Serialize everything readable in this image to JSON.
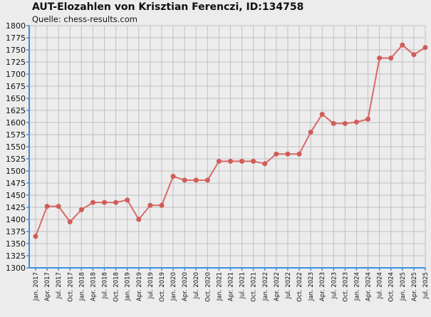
{
  "chart_data": {
    "type": "line",
    "title": "AUT-Elozahlen von Krisztian Ferenczi, ID:134758",
    "subtitle": "Quelle: chess-results.com",
    "xlabel": "",
    "ylabel": "",
    "ylim": [
      1300,
      1800
    ],
    "yticks": [
      1300,
      1325,
      1350,
      1375,
      1400,
      1425,
      1450,
      1475,
      1500,
      1525,
      1550,
      1575,
      1600,
      1625,
      1650,
      1675,
      1700,
      1725,
      1750,
      1775,
      1800
    ],
    "categories": [
      "Jan. 2017",
      "Apr. 2017",
      "Jul. 2017",
      "Oct. 2017",
      "Jan. 2018",
      "Apr. 2018",
      "Jul. 2018",
      "Oct. 2018",
      "Jan. 2019",
      "Apr. 2019",
      "Jul. 2019",
      "Oct. 2019",
      "Jan. 2020",
      "Apr. 2020",
      "Jul. 2020",
      "Oct. 2020",
      "Jan. 2021",
      "Apr. 2021",
      "Jul. 2021",
      "Oct. 2021",
      "Jan. 2022",
      "Apr. 2022",
      "Jul. 2022",
      "Oct. 2022",
      "Jan. 2023",
      "Apr. 2023",
      "Jul. 2023",
      "Oct. 2023",
      "Jan. 2024",
      "Apr. 2024",
      "Jul. 2024",
      "Oct. 2024",
      "Jan. 2025",
      "Apr. 2025",
      "Jul. 2025"
    ],
    "series": [
      {
        "values": [
          1365,
          1427,
          1427,
          1395,
          1420,
          1435,
          1435,
          1435,
          1440,
          1400,
          1429,
          1429,
          1489,
          1481,
          1481,
          1481,
          1520,
          1520,
          1520,
          1520,
          1515,
          1535,
          1535,
          1535,
          1580,
          1617,
          1598,
          1598,
          1601,
          1607,
          1733,
          1733,
          1760,
          1740,
          1755
        ]
      }
    ],
    "grid": true,
    "colors": {
      "line": "#d96a66",
      "marker": "#d05c58",
      "grid": "#c0c0c0",
      "axis": "#3d8fe0",
      "background": "#ececec"
    }
  }
}
